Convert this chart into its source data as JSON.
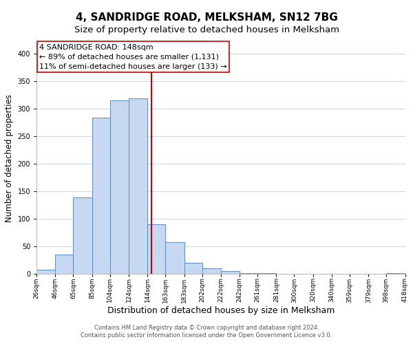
{
  "title": "4, SANDRIDGE ROAD, MELKSHAM, SN12 7BG",
  "subtitle": "Size of property relative to detached houses in Melksham",
  "xlabel": "Distribution of detached houses by size in Melksham",
  "ylabel": "Number of detached properties",
  "footnote1": "Contains HM Land Registry data © Crown copyright and database right 2024.",
  "footnote2": "Contains public sector information licensed under the Open Government Licence v3.0.",
  "bar_left_edges": [
    26,
    46,
    65,
    85,
    104,
    124,
    144,
    163,
    183,
    202,
    222,
    242,
    261,
    281,
    300,
    320,
    340,
    359,
    379,
    398
  ],
  "bar_widths": [
    20,
    19,
    20,
    19,
    20,
    20,
    19,
    20,
    19,
    20,
    20,
    19,
    20,
    19,
    20,
    20,
    19,
    20,
    19,
    20
  ],
  "bar_heights": [
    7,
    35,
    138,
    283,
    315,
    318,
    90,
    57,
    20,
    10,
    4,
    1,
    1,
    0,
    0,
    0,
    0,
    0,
    0,
    1
  ],
  "bar_color": "#c6d9f0",
  "bar_edge_color": "#5a8ac6",
  "vline_x": 148,
  "vline_color": "#cc0000",
  "ann_line1": "4 SANDRIDGE ROAD: 148sqm",
  "ann_line2": "← 89% of detached houses are smaller (1,131)",
  "ann_line3": "11% of semi-detached houses are larger (133) →",
  "tick_labels": [
    "26sqm",
    "46sqm",
    "65sqm",
    "85sqm",
    "104sqm",
    "124sqm",
    "144sqm",
    "163sqm",
    "183sqm",
    "202sqm",
    "222sqm",
    "242sqm",
    "261sqm",
    "281sqm",
    "300sqm",
    "320sqm",
    "340sqm",
    "359sqm",
    "379sqm",
    "398sqm",
    "418sqm"
  ],
  "ylim": [
    0,
    420
  ],
  "yticks": [
    0,
    50,
    100,
    150,
    200,
    250,
    300,
    350,
    400
  ],
  "bg_color": "#ffffff",
  "grid_color": "#d0d8e8",
  "title_fontsize": 11,
  "subtitle_fontsize": 9.5,
  "ylabel_fontsize": 8.5,
  "xlabel_fontsize": 9,
  "tick_fontsize": 6.5,
  "ann_fontsize": 8,
  "footnote_fontsize": 6
}
